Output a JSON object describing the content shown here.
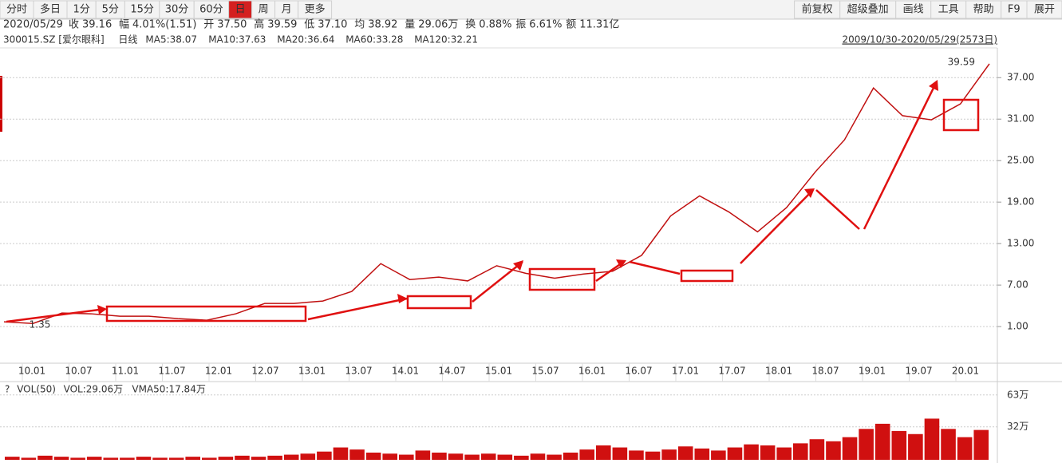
{
  "toolbar": {
    "left": [
      "分时",
      "多日",
      "1分",
      "5分",
      "15分",
      "30分",
      "60分",
      "日",
      "周",
      "月",
      "更多"
    ],
    "active": "日",
    "right": [
      "前复权",
      "超级叠加",
      "画线",
      "工具",
      "帮助",
      "F9",
      "展开"
    ]
  },
  "info": [
    {
      "label": "2020/05/29",
      "value": null,
      "color": "#333"
    },
    {
      "label": "收",
      "value": "39.16",
      "color": "#e00000"
    },
    {
      "label": "幅",
      "value": "4.01%(1.51)",
      "color": "#e00000"
    },
    {
      "label": "开",
      "value": "37.50",
      "color": "#e00000"
    },
    {
      "label": "高",
      "value": "39.59",
      "color": "#e00000"
    },
    {
      "label": "低",
      "value": "37.10",
      "color": "#e00000"
    },
    {
      "label": "均",
      "value": "38.92",
      "color": "#e00000"
    },
    {
      "label": "量",
      "value": "29.06万",
      "color": "#333"
    },
    {
      "label": "换",
      "value": "0.88%",
      "color": "#333"
    },
    {
      "label": "振",
      "value": "6.61%",
      "color": "#333"
    },
    {
      "label": "额",
      "value": "11.31亿",
      "color": "#333"
    }
  ],
  "legend": {
    "code": "300015.SZ [爱尔眼科]",
    "period": "日线",
    "items": [
      {
        "text": "MA5:38.07",
        "color": "#e03030"
      },
      {
        "text": "MA10:37.63",
        "color": "#5080a8"
      },
      {
        "text": "MA20:36.64",
        "color": "#1030c8"
      },
      {
        "text": "MA60:33.28",
        "color": "#20b0c8"
      },
      {
        "text": "MA120:32.21",
        "color": "#20a040"
      }
    ],
    "range": "2009/10/30-2020/05/29(2573日)"
  },
  "chart_data": {
    "type": "line",
    "series": [
      {
        "name": "日线",
        "color": "#c01010",
        "values": [
          1.69,
          1.45,
          2.96,
          2.85,
          2.5,
          2.5,
          2.15,
          1.92,
          2.85,
          4.35,
          4.35,
          4.69,
          6.08,
          10.1,
          7.8,
          8.15,
          7.6,
          9.8,
          8.7,
          8.0,
          8.6,
          9.0,
          11.3,
          17.0,
          19.9,
          17.6,
          14.7,
          18.2,
          23.4,
          28.0,
          35.5,
          31.5,
          30.9,
          33.2,
          39.0
        ]
      }
    ],
    "ylim": [
      -4.3,
      41.3
    ],
    "yticks": [
      {
        "value": 1,
        "label": "1.00"
      },
      {
        "value": 7,
        "label": "7.00"
      },
      {
        "value": 13,
        "label": "13.00"
      },
      {
        "value": 19,
        "label": "19.00"
      },
      {
        "value": 25,
        "label": "25.00"
      },
      {
        "value": 31,
        "label": "31.00"
      },
      {
        "value": 37,
        "label": "37.00"
      }
    ],
    "grid": true,
    "xlabels": [
      "10.01",
      "10.07",
      "11.01",
      "11.07",
      "12.01",
      "12.07",
      "13.01",
      "13.07",
      "14.01",
      "14.07",
      "15.01",
      "15.07",
      "16.01",
      "16.07",
      "17.01",
      "17.07",
      "18.01",
      "18.07",
      "19.01",
      "19.07",
      "20.01"
    ],
    "annotations": {
      "high": "39.59",
      "low": "1.35"
    }
  },
  "volume": {
    "header": [
      "?",
      "VOL(50)",
      "VOL:29.06万",
      "VMA50:17.84万"
    ],
    "type": "bar",
    "color": "#d01010",
    "values": [
      3,
      2,
      4,
      3,
      2,
      3,
      2,
      2,
      3,
      2,
      2,
      3,
      2,
      3,
      4,
      3,
      4,
      5,
      6,
      8,
      12,
      10,
      7,
      6,
      5,
      9,
      7,
      6,
      5,
      6,
      5,
      4,
      6,
      5,
      7,
      10,
      14,
      12,
      9,
      8,
      10,
      13,
      11,
      9,
      12,
      15,
      14,
      12,
      16,
      20,
      18,
      22,
      30,
      35,
      28,
      25,
      40,
      30,
      22,
      29
    ],
    "ylim": [
      0,
      66.7
    ],
    "yticks": [
      {
        "value": 32,
        "label": "32万"
      },
      {
        "value": 63,
        "label": "63万"
      }
    ]
  }
}
